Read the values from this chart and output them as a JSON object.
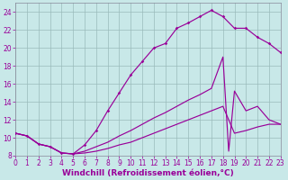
{
  "xlabel": "Windchill (Refroidissement éolien,°C)",
  "bg_color": "#c8e8e8",
  "grid_color": "#99bbbb",
  "line_color": "#990099",
  "xlim": [
    0,
    23
  ],
  "ylim": [
    8,
    25
  ],
  "xticks": [
    0,
    1,
    2,
    3,
    4,
    5,
    6,
    7,
    8,
    9,
    10,
    11,
    12,
    13,
    14,
    15,
    16,
    17,
    18,
    19,
    20,
    21,
    22,
    23
  ],
  "yticks": [
    8,
    10,
    12,
    14,
    16,
    18,
    20,
    22,
    24
  ],
  "line1_x": [
    0,
    1,
    2,
    3,
    4,
    5,
    6,
    7,
    8,
    9,
    10,
    11,
    12,
    13,
    14,
    15,
    16,
    17,
    18,
    19,
    20,
    21,
    22,
    23
  ],
  "line1_y": [
    10.5,
    10.2,
    9.3,
    9.0,
    8.3,
    8.2,
    9.2,
    10.8,
    13.0,
    15.0,
    17.0,
    18.5,
    20.0,
    20.5,
    22.2,
    22.8,
    23.5,
    24.2,
    23.5,
    22.2,
    22.2,
    21.2,
    20.5,
    19.5
  ],
  "line2_x": [
    0,
    1,
    2,
    3,
    4,
    5,
    6,
    7,
    8,
    9,
    10,
    11,
    12,
    13,
    14,
    15,
    16,
    17,
    18,
    18.5,
    19,
    20,
    21,
    22,
    23
  ],
  "line2_y": [
    10.5,
    10.2,
    9.3,
    9.0,
    8.3,
    8.2,
    8.5,
    9.0,
    9.5,
    10.2,
    10.8,
    11.5,
    12.2,
    12.8,
    13.5,
    14.2,
    14.8,
    15.5,
    19.0,
    8.5,
    15.2,
    13.0,
    13.5,
    12.0,
    11.5
  ],
  "line3_x": [
    0,
    1,
    2,
    3,
    4,
    5,
    6,
    7,
    8,
    9,
    10,
    11,
    12,
    13,
    14,
    15,
    16,
    17,
    18,
    19,
    20,
    21,
    22,
    23
  ],
  "line3_y": [
    10.5,
    10.2,
    9.3,
    9.0,
    8.3,
    8.2,
    8.3,
    8.5,
    8.8,
    9.2,
    9.5,
    10.0,
    10.5,
    11.0,
    11.5,
    12.0,
    12.5,
    13.0,
    13.5,
    10.5,
    10.8,
    11.2,
    11.5,
    11.5
  ],
  "xlabel_fontsize": 6.5,
  "tick_fontsize": 5.5,
  "marker": "D",
  "marker_size": 1.8,
  "linewidth": 0.85
}
